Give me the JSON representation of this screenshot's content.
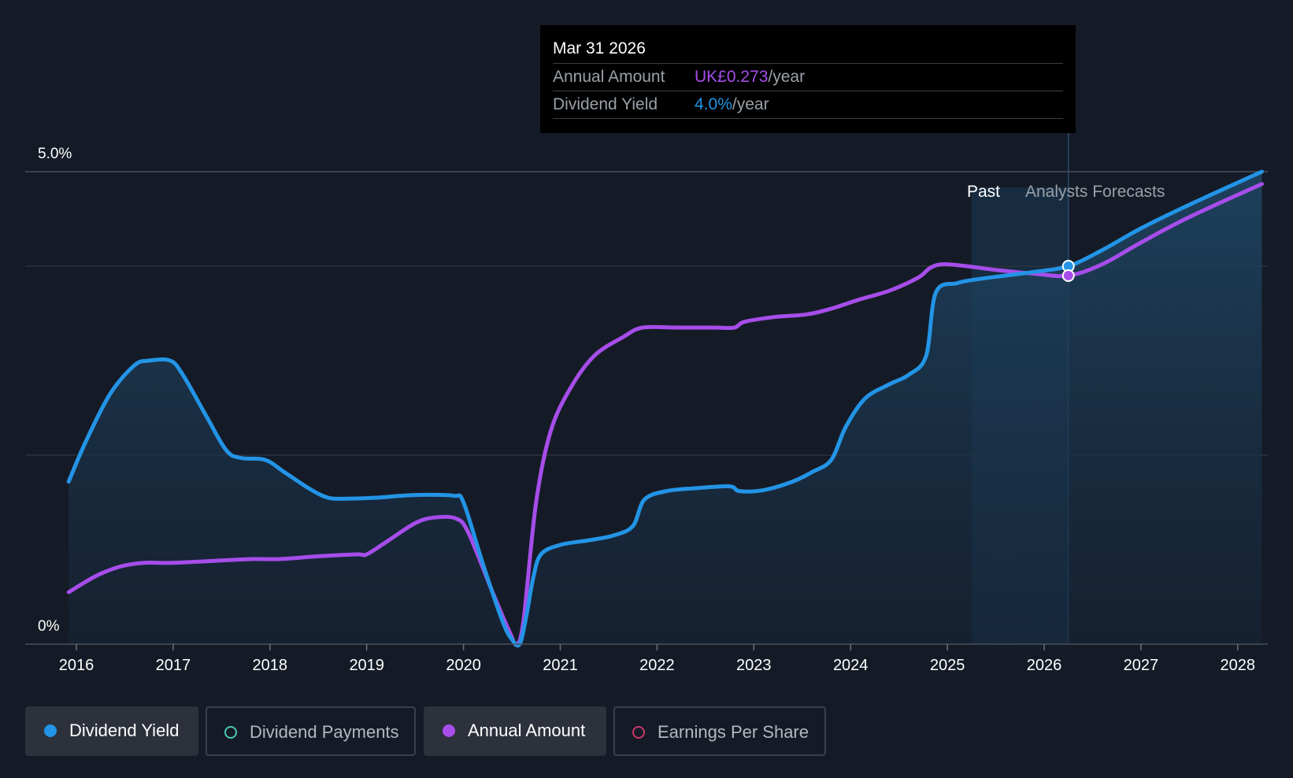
{
  "tooltip": {
    "date": "Mar 31 2026",
    "annual_label": "Annual Amount",
    "annual_value": "UK£0.273",
    "annual_unit": "/year",
    "yield_label": "Dividend Yield",
    "yield_value": "4.0%",
    "yield_unit": "/year"
  },
  "zones": {
    "past": "Past",
    "forecast": "Analysts Forecasts"
  },
  "legend": [
    {
      "label": "Dividend Yield",
      "active": true,
      "color": "#2394e6",
      "filled": true
    },
    {
      "label": "Dividend Payments",
      "active": false,
      "color": "#4dc7b5",
      "filled": false
    },
    {
      "label": "Annual Amount",
      "active": true,
      "color": "#a64dea",
      "filled": true
    },
    {
      "label": "Earnings Per Share",
      "active": false,
      "color": "#c8386b",
      "filled": false
    }
  ],
  "colors": {
    "yield": "#2394e6",
    "annual": "#a64dea",
    "background": "#151b26"
  },
  "chart_data": {
    "type": "line",
    "title": "",
    "xlabel": "",
    "ylabel": "",
    "y_ticks": [
      "5.0%",
      "0%"
    ],
    "ylim": [
      0,
      5.0
    ],
    "xlim": [
      2015.5,
      2028.25
    ],
    "x_ticks": [
      "2016",
      "2017",
      "2018",
      "2019",
      "2020",
      "2021",
      "2022",
      "2023",
      "2024",
      "2025",
      "2026",
      "2027",
      "2028"
    ],
    "past_forecast_boundary": 2025.25,
    "highlight_x": 2026.25,
    "series": [
      {
        "name": "Dividend Yield",
        "unit": "%",
        "area": true,
        "points": [
          [
            2015.92,
            1.72
          ],
          [
            2016.1,
            2.15
          ],
          [
            2016.35,
            2.65
          ],
          [
            2016.6,
            2.95
          ],
          [
            2016.75,
            3.0
          ],
          [
            2016.97,
            3.0
          ],
          [
            2017.1,
            2.85
          ],
          [
            2017.35,
            2.4
          ],
          [
            2017.55,
            2.05
          ],
          [
            2017.7,
            1.97
          ],
          [
            2017.95,
            1.95
          ],
          [
            2018.15,
            1.82
          ],
          [
            2018.4,
            1.65
          ],
          [
            2018.6,
            1.55
          ],
          [
            2018.8,
            1.54
          ],
          [
            2019.1,
            1.55
          ],
          [
            2019.35,
            1.57
          ],
          [
            2019.6,
            1.58
          ],
          [
            2019.9,
            1.57
          ],
          [
            2020.0,
            1.5
          ],
          [
            2020.2,
            0.85
          ],
          [
            2020.4,
            0.25
          ],
          [
            2020.5,
            0.05
          ],
          [
            2020.58,
            0.0
          ],
          [
            2020.65,
            0.3
          ],
          [
            2020.72,
            0.7
          ],
          [
            2020.8,
            0.95
          ],
          [
            2021.0,
            1.05
          ],
          [
            2021.3,
            1.1
          ],
          [
            2021.55,
            1.15
          ],
          [
            2021.75,
            1.25
          ],
          [
            2021.87,
            1.53
          ],
          [
            2022.1,
            1.62
          ],
          [
            2022.4,
            1.65
          ],
          [
            2022.75,
            1.67
          ],
          [
            2022.85,
            1.62
          ],
          [
            2023.1,
            1.63
          ],
          [
            2023.4,
            1.72
          ],
          [
            2023.6,
            1.82
          ],
          [
            2023.8,
            1.95
          ],
          [
            2023.95,
            2.3
          ],
          [
            2024.15,
            2.6
          ],
          [
            2024.4,
            2.75
          ],
          [
            2024.6,
            2.85
          ],
          [
            2024.78,
            3.05
          ],
          [
            2024.88,
            3.72
          ],
          [
            2025.1,
            3.82
          ],
          [
            2025.3,
            3.86
          ],
          [
            2025.6,
            3.9
          ],
          [
            2025.9,
            3.94
          ],
          [
            2026.25,
            4.0
          ],
          [
            2026.6,
            4.17
          ],
          [
            2027.0,
            4.4
          ],
          [
            2027.5,
            4.65
          ],
          [
            2028.25,
            5.0
          ]
        ]
      },
      {
        "name": "Annual Amount",
        "unit": "relative",
        "area": false,
        "points": [
          [
            2015.92,
            0.55
          ],
          [
            2016.2,
            0.72
          ],
          [
            2016.45,
            0.82
          ],
          [
            2016.7,
            0.86
          ],
          [
            2017.0,
            0.86
          ],
          [
            2017.4,
            0.88
          ],
          [
            2017.8,
            0.9
          ],
          [
            2018.1,
            0.9
          ],
          [
            2018.5,
            0.93
          ],
          [
            2018.9,
            0.95
          ],
          [
            2019.0,
            0.95
          ],
          [
            2019.2,
            1.08
          ],
          [
            2019.5,
            1.28
          ],
          [
            2019.7,
            1.34
          ],
          [
            2019.92,
            1.33
          ],
          [
            2020.05,
            1.18
          ],
          [
            2020.3,
            0.55
          ],
          [
            2020.48,
            0.12
          ],
          [
            2020.55,
            0.0
          ],
          [
            2020.62,
            0.25
          ],
          [
            2020.75,
            1.5
          ],
          [
            2020.9,
            2.25
          ],
          [
            2021.1,
            2.7
          ],
          [
            2021.35,
            3.05
          ],
          [
            2021.65,
            3.25
          ],
          [
            2021.85,
            3.35
          ],
          [
            2022.2,
            3.35
          ],
          [
            2022.6,
            3.35
          ],
          [
            2022.8,
            3.35
          ],
          [
            2022.9,
            3.41
          ],
          [
            2023.2,
            3.46
          ],
          [
            2023.55,
            3.49
          ],
          [
            2023.8,
            3.55
          ],
          [
            2024.1,
            3.65
          ],
          [
            2024.4,
            3.74
          ],
          [
            2024.7,
            3.88
          ],
          [
            2024.82,
            3.98
          ],
          [
            2024.95,
            4.02
          ],
          [
            2025.2,
            4.0
          ],
          [
            2025.5,
            3.96
          ],
          [
            2025.9,
            3.92
          ],
          [
            2026.25,
            3.9
          ],
          [
            2026.6,
            4.02
          ],
          [
            2027.0,
            4.25
          ],
          [
            2027.5,
            4.52
          ],
          [
            2028.25,
            4.87
          ]
        ]
      }
    ]
  }
}
